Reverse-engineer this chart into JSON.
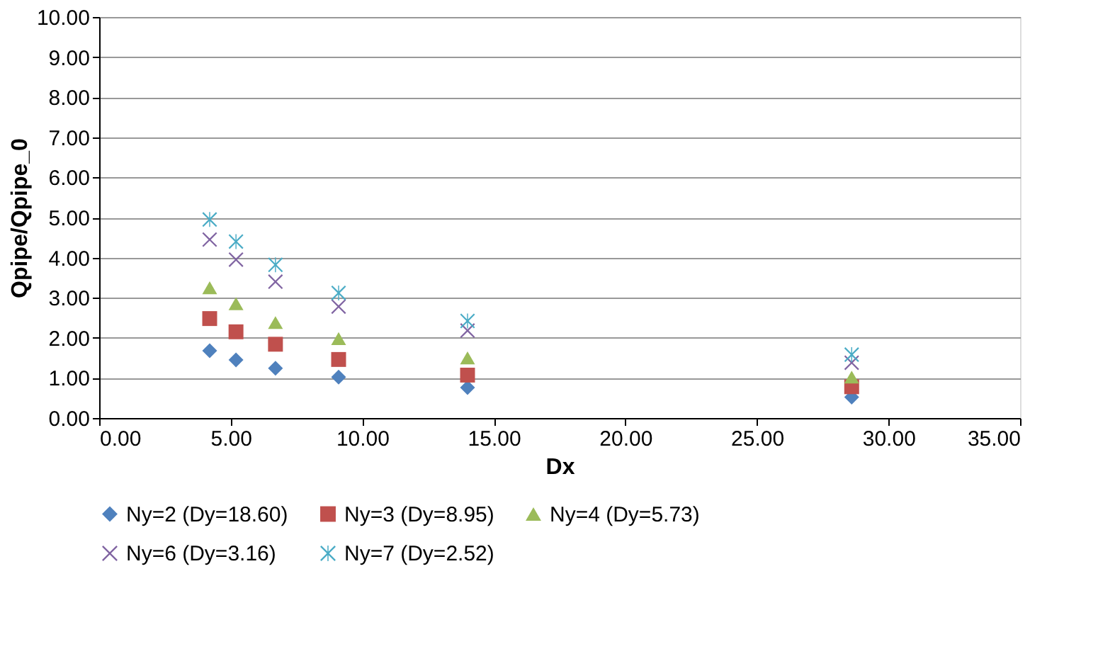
{
  "chart_data": {
    "type": "scatter",
    "xlabel": "Dx",
    "ylabel": "Qpipe/Qpipe_0",
    "x": [
      4.2,
      5.2,
      6.7,
      9.1,
      14.0,
      28.6
    ],
    "series": [
      {
        "name": "Ny=2 (Dy=18.60)",
        "color": "#4f81bd",
        "marker": "diamond",
        "values": [
          1.68,
          1.45,
          1.24,
          1.02,
          0.76,
          0.52
        ]
      },
      {
        "name": "Ny=3 (Dy=8.95)",
        "color": "#c0504d",
        "marker": "square",
        "values": [
          2.48,
          2.15,
          1.84,
          1.46,
          1.07,
          0.78
        ]
      },
      {
        "name": "Ny=4 (Dy=5.73)",
        "color": "#9bbb59",
        "marker": "triangle",
        "values": [
          3.25,
          2.85,
          2.38,
          1.98,
          1.5,
          1.02
        ]
      },
      {
        "name": "Ny=6 (Dy=3.16)",
        "color": "#8064a2",
        "marker": "cross",
        "values": [
          4.45,
          3.95,
          3.4,
          2.78,
          2.18,
          1.38
        ]
      },
      {
        "name": "Ny=7 (Dy=2.52)",
        "color": "#4bacc6",
        "marker": "star",
        "values": [
          4.95,
          4.4,
          3.82,
          3.12,
          2.42,
          1.58
        ]
      }
    ],
    "xlim": [
      0,
      35
    ],
    "xticks": [
      {
        "value": 0,
        "label": "0.00"
      },
      {
        "value": 5,
        "label": "5.00"
      },
      {
        "value": 10,
        "label": "10.00"
      },
      {
        "value": 15,
        "label": "15.00"
      },
      {
        "value": 20,
        "label": "20.00"
      },
      {
        "value": 25,
        "label": "25.00"
      },
      {
        "value": 30,
        "label": "30.00"
      },
      {
        "value": 35,
        "label": "35.00"
      }
    ],
    "ylim": [
      0,
      10
    ],
    "yticks": [
      {
        "value": 0,
        "label": "0.00"
      },
      {
        "value": 1,
        "label": "1.00"
      },
      {
        "value": 2,
        "label": "2.00"
      },
      {
        "value": 3,
        "label": "3.00"
      },
      {
        "value": 4,
        "label": "4.00"
      },
      {
        "value": 5,
        "label": "5.00"
      },
      {
        "value": 6,
        "label": "6.00"
      },
      {
        "value": 7,
        "label": "7.00"
      },
      {
        "value": 8,
        "label": "8.00"
      },
      {
        "value": 9,
        "label": "9.00"
      },
      {
        "value": 10,
        "label": "10.00"
      }
    ],
    "grid": "y",
    "legend": "bottom"
  }
}
